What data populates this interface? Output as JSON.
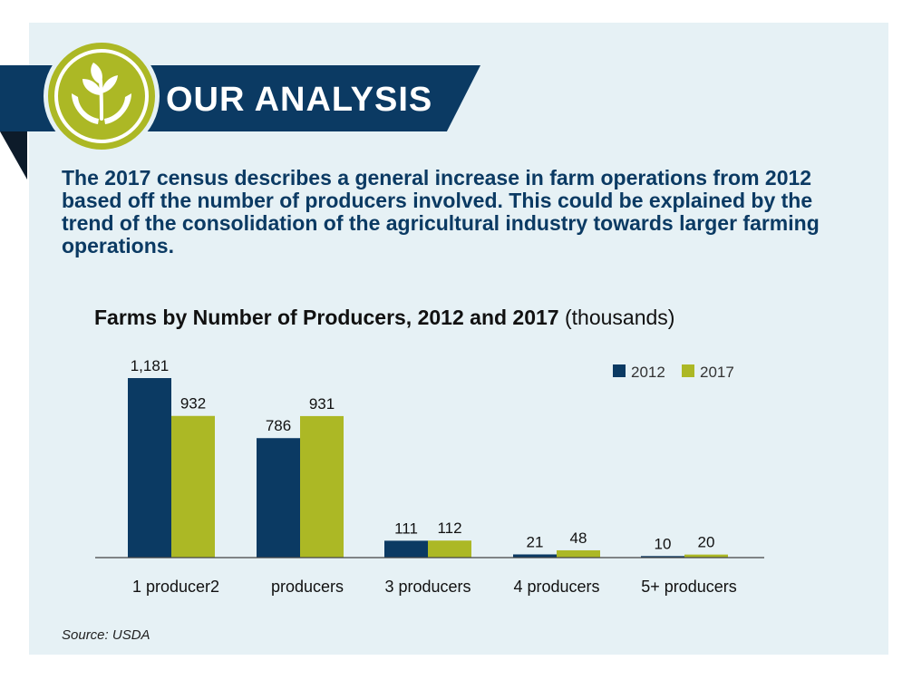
{
  "header": {
    "title": "OUR ANALYSIS",
    "logo_icon": "plant-in-hands-icon"
  },
  "intro": {
    "text": "The 2017 census describes a general increase in farm operations from 2012 based off the number of producers involved. This could be explained by the trend of the consolidation of the agricultural industry towards larger farming operations."
  },
  "source": "Source: USDA",
  "colors": {
    "navy": "#0b3a63",
    "olive": "#acb825",
    "panel": "#e6f1f5"
  },
  "chart_data": {
    "type": "bar",
    "title": "Farms by Number of Producers, 2012 and 2017",
    "title_unit": "(thousands)",
    "categories": [
      "1 producer2",
      "producers",
      "3 producers",
      "4 producers",
      "5+ producers"
    ],
    "series": [
      {
        "name": "2012",
        "values": [
          1181,
          786,
          111,
          21,
          10
        ],
        "labels": [
          "1,181",
          "786",
          "111",
          "21",
          "10"
        ],
        "color": "#0b3a63"
      },
      {
        "name": "2017",
        "values": [
          932,
          931,
          112,
          48,
          20
        ],
        "labels": [
          "932",
          "931",
          "112",
          "48",
          "20"
        ],
        "color": "#acb825"
      }
    ],
    "xlabel": "",
    "ylabel": "",
    "ylim": [
      0,
      1181
    ],
    "grid": false,
    "legend": "top-right"
  }
}
